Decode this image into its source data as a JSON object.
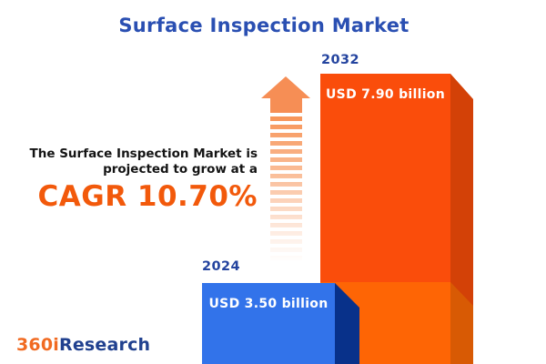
{
  "title": "Surface Inspection Market",
  "annotation": {
    "line1": "The Surface Inspection Market is",
    "line2": "projected to grow at a",
    "cagr": "CAGR 10.70%",
    "cagr_percent": 10.7
  },
  "chart_data": {
    "type": "bar",
    "title": "Surface Inspection Market",
    "unit": "USD billion",
    "categories": [
      "2024",
      "2032"
    ],
    "values": [
      3.5,
      7.9
    ],
    "cagr_percent": 10.7,
    "legend_position": "none",
    "grid": false,
    "bars": [
      {
        "year": "2024",
        "value": 3.5,
        "value_label": "USD 3.50 billion",
        "face_color": "#3273ea",
        "side_color": "#08318a"
      },
      {
        "year": "2032",
        "value": 7.9,
        "value_label": "USD 7.90 billion",
        "face_color": "#fa4d0b",
        "side_color": "#d34107",
        "lower_face_color": "#fe6505",
        "lower_side_color": "#d85a04"
      }
    ]
  },
  "icons": {
    "growth_arrow": "upward-striped-arrow",
    "arrow_color": "#f68e55"
  },
  "colors": {
    "title_blue": "#2a4fb2",
    "year_label_blue": "#24449f",
    "cagr_orange": "#f2590b",
    "annotation_text": "#141414",
    "background": "#ffffff"
  },
  "logo": {
    "prefix": "360i",
    "suffix": "Research",
    "prefix_color": "#f16a21",
    "suffix_color": "#21418f"
  }
}
